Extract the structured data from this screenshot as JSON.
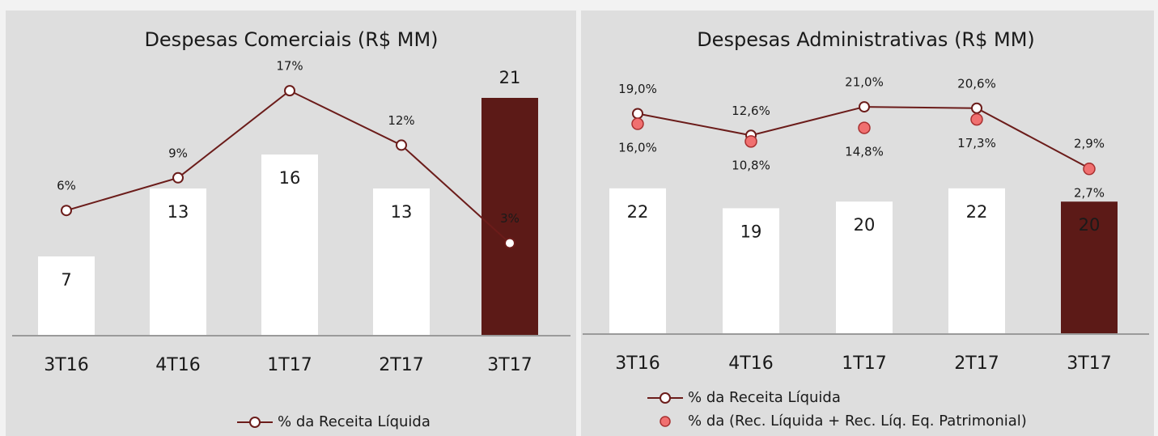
{
  "chart_data": [
    {
      "type": "bar",
      "title": "Despesas Comerciais (R$ MM)",
      "categories": [
        "3T16",
        "4T16",
        "1T17",
        "2T17",
        "3T17"
      ],
      "values": [
        7,
        13,
        16,
        13,
        21
      ],
      "bar_colors": [
        "#ffffff",
        "#ffffff",
        "#ffffff",
        "#ffffff",
        "#5c1a17"
      ],
      "ylim": [
        0,
        25
      ],
      "y2lim": [
        -5.5,
        20.5
      ],
      "series": [
        {
          "name": "% da Receita Líquida",
          "color": "#6b1c1a",
          "style": "line",
          "axis": "y2",
          "values": [
            6,
            9,
            17,
            12,
            3
          ],
          "value_labels": [
            "6%",
            "9%",
            "17%",
            "12%",
            "3%"
          ]
        }
      ]
    },
    {
      "type": "bar",
      "title": "Despesas Administrativas (R$ MM)",
      "categories": [
        "3T16",
        "4T16",
        "1T17",
        "2T17",
        "3T17"
      ],
      "values": [
        22,
        19,
        20,
        22,
        20
      ],
      "bar_colors": [
        "#ffffff",
        "#ffffff",
        "#ffffff",
        "#ffffff",
        "#5c1a17"
      ],
      "ylim": [
        0,
        42.5
      ],
      "y2lim": [
        -46,
        37
      ],
      "series": [
        {
          "name": "% da Receita Líquida",
          "color": "#6b1c1a",
          "style": "line",
          "axis": "y2",
          "values": [
            19.0,
            12.6,
            21.0,
            20.6,
            2.9
          ],
          "value_labels": [
            "19,0%",
            "12,6%",
            "21,0%",
            "20,6%",
            "2,9%"
          ]
        },
        {
          "name": "% da (Rec. Líquida + Rec. Líq. Eq. Patrimonial)",
          "color": "#f07070",
          "style": "markers",
          "axis": "y2",
          "values": [
            16.0,
            10.8,
            14.8,
            17.3,
            2.7
          ],
          "value_labels": [
            "16,0%",
            "10,8%",
            "14,8%",
            "17,3%",
            "2,7%"
          ]
        }
      ]
    }
  ]
}
